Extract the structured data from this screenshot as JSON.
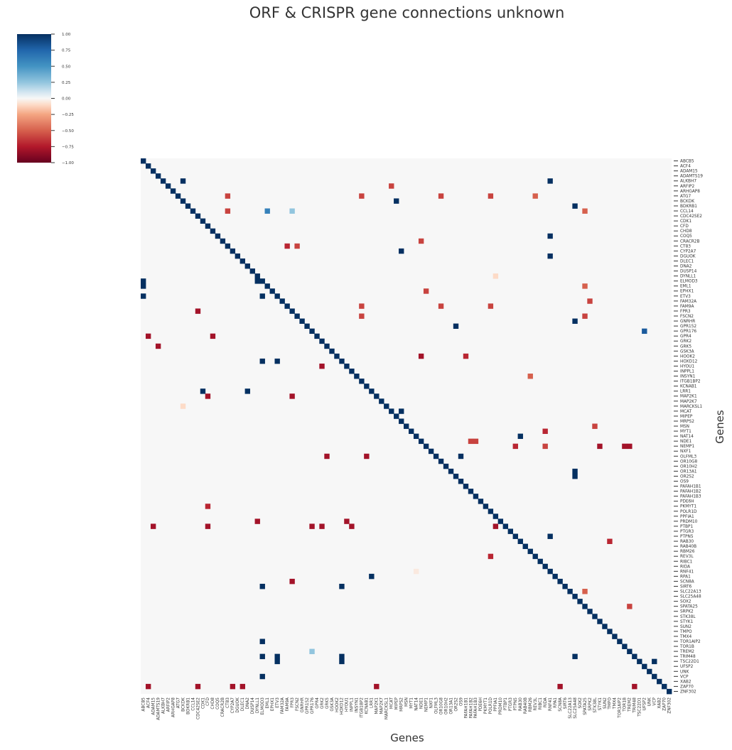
{
  "chart_data": {
    "type": "heatmap",
    "title": "ORF & CRISPR gene connections unknown",
    "xlabel": "Genes",
    "ylabel": "Genes",
    "labels": [
      "ABCB5",
      "ACF4",
      "ADAM15",
      "ADAMTS19",
      "ALKBH7",
      "ARFIP2",
      "ARHGAP8",
      "ATG7",
      "BCKDK",
      "BDKRB1",
      "CCL14",
      "CDC42SE2",
      "CDK1",
      "CFD",
      "CHD8",
      "COQ5",
      "CRACR2B",
      "CT83",
      "CYP2A7",
      "DGUOK",
      "DLEC1",
      "DNA2",
      "DUSP14",
      "DYNLL1",
      "ELMOD3",
      "EML1",
      "EPHX1",
      "ETV3",
      "FAM32A",
      "FAM9A",
      "FPR3",
      "FSCN2",
      "GNRHR",
      "GPR152",
      "GPR176",
      "GPR4",
      "GRK2",
      "GRK5",
      "GSK3A",
      "HOOK2",
      "HOXD12",
      "HYOU1",
      "INPPL1",
      "INSYN1",
      "ITGB1BP2",
      "KCNAB1",
      "LRR1",
      "MAP2K1",
      "MAP2K7",
      "MARCKSL1",
      "MCAT",
      "MIPEP",
      "MRPS2",
      "MSN",
      "MYT1",
      "NAT14",
      "NDE1",
      "NEMP1",
      "NXF1",
      "OLFML3",
      "OR10G8",
      "OR10H2",
      "OR13A1",
      "OR2S2",
      "OS9",
      "PAFAH1B1",
      "PAFAH1B2",
      "PAFAH1B3",
      "PDE6H",
      "PKMYT1",
      "POLR1D",
      "PPFIA1",
      "PRDM10",
      "PTBP1",
      "PTGR3",
      "PTPN5",
      "RAB30",
      "RAB40B",
      "RBM26",
      "REV3L",
      "RIBC1",
      "RIDA",
      "RNF41",
      "RPA1",
      "SCN8A",
      "SIRT6",
      "SLC22A13",
      "SLC25A48",
      "SOX2",
      "SPATA25",
      "SRPK2",
      "STK38L",
      "STYK1",
      "SUN2",
      "TMPO",
      "TMX4",
      "TOR1AIP2",
      "TOR1B",
      "TREM2",
      "TRIM48",
      "TSC22D1",
      "UFSP2",
      "UNK",
      "VCP",
      "XAB2",
      "ZAP70",
      "ZNF302"
    ],
    "vmin": -1.0,
    "vmax": 1.0,
    "background_value": 0.0,
    "colormap": "RdBu",
    "colorbar_ticks": [
      "1.00",
      "0.75",
      "0.50",
      "0.25",
      "0.00",
      "−0.25",
      "−0.50",
      "−0.75",
      "−1.00"
    ],
    "colorbar_tick_values": [
      1.0,
      0.75,
      0.5,
      0.25,
      0.0,
      -0.25,
      -0.5,
      -0.75,
      -1.0
    ],
    "diagonal_value": 1.0,
    "cells": [
      [
        4,
        8,
        1.0
      ],
      [
        4,
        82,
        1.0
      ],
      [
        5,
        50,
        -0.6
      ],
      [
        7,
        17,
        -0.6
      ],
      [
        7,
        44,
        -0.6
      ],
      [
        7,
        60,
        -0.6
      ],
      [
        7,
        70,
        -0.6
      ],
      [
        7,
        79,
        -0.5
      ],
      [
        8,
        51,
        1.0
      ],
      [
        9,
        87,
        1.0
      ],
      [
        10,
        17,
        -0.6
      ],
      [
        10,
        25,
        0.6
      ],
      [
        10,
        30,
        0.25
      ],
      [
        10,
        89,
        -0.5
      ],
      [
        15,
        82,
        1.0
      ],
      [
        16,
        56,
        -0.6
      ],
      [
        17,
        29,
        -0.7
      ],
      [
        17,
        31,
        -0.6
      ],
      [
        18,
        52,
        1.0
      ],
      [
        19,
        82,
        1.0
      ],
      [
        23,
        71,
        -0.1
      ],
      [
        24,
        0,
        1.0
      ],
      [
        24,
        23,
        1.0
      ],
      [
        25,
        0,
        1.0
      ],
      [
        25,
        89,
        -0.5
      ],
      [
        26,
        57,
        -0.6
      ],
      [
        27,
        0,
        1.0
      ],
      [
        27,
        24,
        1.0
      ],
      [
        28,
        90,
        -0.6
      ],
      [
        29,
        44,
        -0.6
      ],
      [
        29,
        60,
        -0.6
      ],
      [
        29,
        70,
        -0.6
      ],
      [
        30,
        11,
        -0.8
      ],
      [
        31,
        44,
        -0.6
      ],
      [
        31,
        89,
        -0.6
      ],
      [
        32,
        87,
        1.0
      ],
      [
        33,
        63,
        1.0
      ],
      [
        34,
        101,
        0.8
      ],
      [
        35,
        1,
        -0.8
      ],
      [
        35,
        14,
        -0.8
      ],
      [
        37,
        3,
        -0.8
      ],
      [
        39,
        56,
        -0.8
      ],
      [
        39,
        65,
        -0.7
      ],
      [
        40,
        24,
        1.0
      ],
      [
        40,
        27,
        1.0
      ],
      [
        41,
        36,
        -0.8
      ],
      [
        43,
        78,
        -0.5
      ],
      [
        46,
        12,
        1.0
      ],
      [
        46,
        21,
        1.0
      ],
      [
        47,
        13,
        -0.8
      ],
      [
        47,
        30,
        -0.8
      ],
      [
        49,
        8,
        -0.1
      ],
      [
        50,
        52,
        1.0
      ],
      [
        53,
        91,
        -0.6
      ],
      [
        54,
        81,
        -0.7
      ],
      [
        55,
        76,
        1.0
      ],
      [
        56,
        66,
        -0.6
      ],
      [
        56,
        67,
        -0.6
      ],
      [
        57,
        75,
        -0.7
      ],
      [
        57,
        81,
        -0.6
      ],
      [
        57,
        92,
        -0.8
      ],
      [
        57,
        97,
        -0.8
      ],
      [
        57,
        98,
        -0.8
      ],
      [
        59,
        37,
        -0.8
      ],
      [
        59,
        45,
        -0.8
      ],
      [
        59,
        64,
        1.0
      ],
      [
        62,
        87,
        1.0
      ],
      [
        63,
        87,
        1.0
      ],
      [
        69,
        13,
        -0.7
      ],
      [
        72,
        23,
        -0.8
      ],
      [
        72,
        41,
        -0.8
      ],
      [
        73,
        2,
        -0.8
      ],
      [
        73,
        13,
        -0.8
      ],
      [
        73,
        34,
        -0.8
      ],
      [
        73,
        36,
        -0.8
      ],
      [
        73,
        42,
        -0.8
      ],
      [
        73,
        71,
        -0.8
      ],
      [
        75,
        82,
        1.0
      ],
      [
        76,
        94,
        -0.7
      ],
      [
        79,
        70,
        -0.7
      ],
      [
        82,
        55,
        -0.05
      ],
      [
        83,
        46,
        1.0
      ],
      [
        84,
        30,
        -0.8
      ],
      [
        85,
        24,
        1.0
      ],
      [
        85,
        40,
        1.0
      ],
      [
        86,
        89,
        -0.5
      ],
      [
        89,
        98,
        -0.6
      ],
      [
        96,
        24,
        1.0
      ],
      [
        98,
        34,
        0.25
      ],
      [
        99,
        24,
        1.0
      ],
      [
        99,
        27,
        1.0
      ],
      [
        99,
        40,
        1.0
      ],
      [
        99,
        87,
        1.0
      ],
      [
        100,
        27,
        1.0
      ],
      [
        100,
        40,
        1.0
      ],
      [
        100,
        103,
        1.0
      ],
      [
        103,
        24,
        1.0
      ],
      [
        105,
        1,
        -0.8
      ],
      [
        105,
        11,
        -0.8
      ],
      [
        105,
        18,
        -0.8
      ],
      [
        105,
        20,
        -0.8
      ],
      [
        105,
        47,
        -0.8
      ],
      [
        105,
        84,
        -0.8
      ],
      [
        105,
        99,
        -0.8
      ]
    ]
  }
}
